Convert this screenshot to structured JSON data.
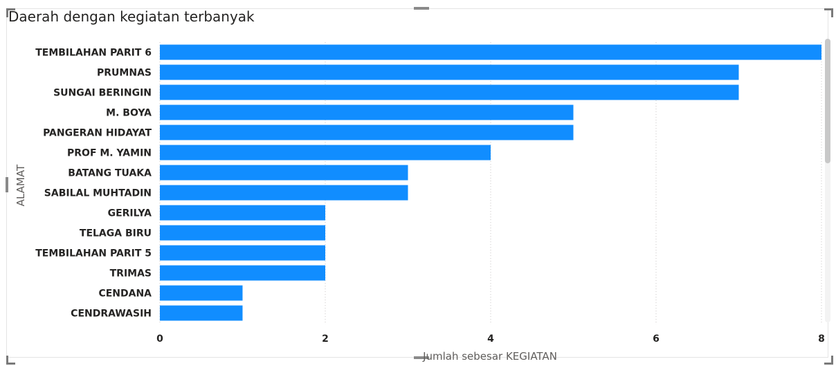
{
  "visual": {
    "title": "Daerah dengan kegiatan terbanyak"
  },
  "chart_data": {
    "type": "bar",
    "orientation": "horizontal",
    "title": "Daerah dengan kegiatan terbanyak",
    "xlabel": "Jumlah sebesar KEGIATAN",
    "ylabel": "ALAMAT",
    "categories": [
      "TEMBILAHAN PARIT 6",
      "PRUMNAS",
      "SUNGAI BERINGIN",
      "M. BOYA",
      "PANGERAN HIDAYAT",
      "PROF M. YAMIN",
      "BATANG TUAKA",
      "SABILAL MUHTADIN",
      "GERILYA",
      "TELAGA BIRU",
      "TEMBILAHAN PARIT 5",
      "TRIMAS",
      "CENDANA",
      "CENDRAWASIH"
    ],
    "values": [
      8,
      7,
      7,
      5,
      5,
      4,
      3,
      3,
      2,
      2,
      2,
      2,
      1,
      1
    ],
    "xlim": [
      0,
      8
    ],
    "xticks": [
      0,
      2,
      4,
      6,
      8
    ],
    "grid": "vertical-dotted",
    "bar_color": "#118DFF"
  }
}
